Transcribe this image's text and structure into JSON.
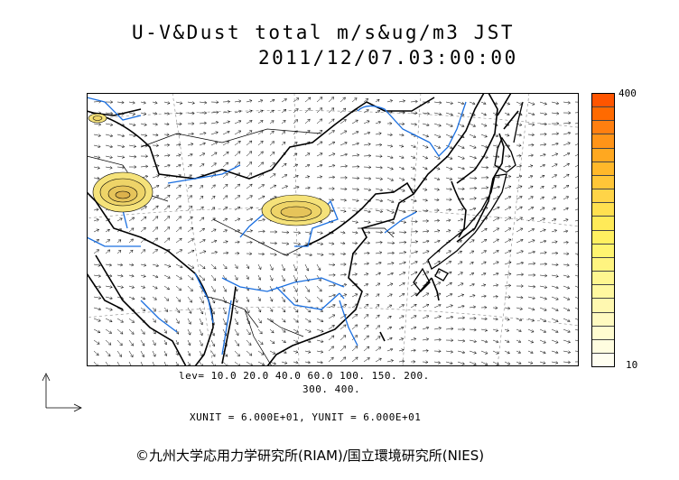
{
  "header": {
    "title": "U-V&Dust total m/s&ug/m3 JST",
    "datetime": "2011/12/07.03:00:00"
  },
  "colorbar": {
    "max_label": "400",
    "min_label": "10",
    "colors": [
      "#ff5500",
      "#ff6a00",
      "#ff7f10",
      "#ff9418",
      "#ffa820",
      "#ffb82a",
      "#ffc638",
      "#ffd448",
      "#ffe050",
      "#ffea58",
      "#fff060",
      "#fff470",
      "#fff480",
      "#fff690",
      "#fff8a0",
      "#fff8b0",
      "#fffac0",
      "#fffcd0",
      "#fffde0",
      "#fffef0"
    ]
  },
  "legend": {
    "lev_line1": "lev= 10.0 20.0 40.0 60.0 100. 150. 200.",
    "lev_line2": "300. 400."
  },
  "units": {
    "text": "XUNIT = 6.000E+01, YUNIT = 6.000E+01"
  },
  "credit": {
    "text": "©九州大学応用力学研究所(RIAM)/国立環境研究所(NIES)"
  },
  "map": {
    "coast_color": "#000000",
    "river_color": "#1a6fe0",
    "dust_color": "#f5e27a",
    "vector_color": "#000000"
  }
}
